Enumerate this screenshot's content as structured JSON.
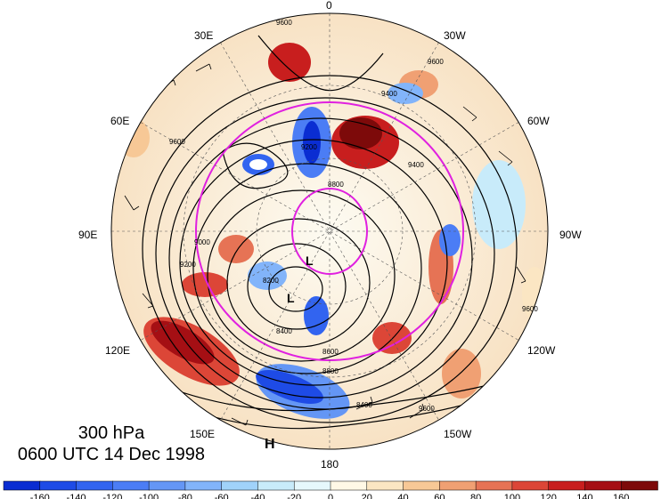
{
  "title_block": {
    "level": "300 hPa",
    "valid_time": "0600 UTC 14 Dec 1998"
  },
  "longitude_labels": {
    "lon_0": "0",
    "lon_30w": "30W",
    "lon_60w": "60W",
    "lon_90w": "90W",
    "lon_120w": "120W",
    "lon_150w": "150W",
    "lon_180": "180",
    "lon_150e": "150E",
    "lon_120e": "120E",
    "lon_90e": "90E",
    "lon_60e": "60E",
    "lon_30e": "30E"
  },
  "projection": "north polar stereographic",
  "contour_labels": {
    "c1": "9600",
    "c2": "9600",
    "c3": "9400",
    "c4": "9200",
    "c5": "8800",
    "c6": "9600",
    "c7": "9000",
    "c8": "9200",
    "c9": "8200",
    "c10": "8400",
    "c11": "8600",
    "c12": "8800",
    "c13": "8400",
    "c14": "9400",
    "c15": "9600",
    "c16": "9600"
  },
  "pressure_centers": {
    "low_1": "L",
    "low_2": "L",
    "high_1": "H"
  },
  "colorbar": {
    "ticks": [
      "-160",
      "-140",
      "-120",
      "-100",
      "-80",
      "-60",
      "-40",
      "-20",
      "0",
      "20",
      "40",
      "60",
      "80",
      "100",
      "120",
      "140",
      "160"
    ],
    "colors": [
      "#0a2dd2",
      "#1e4be6",
      "#3264f0",
      "#4b7df5",
      "#6496f5",
      "#82b4fa",
      "#a0d2fa",
      "#c8ebfa",
      "#e6f8fc",
      "#fff8e6",
      "#fbe6c3",
      "#f7c896",
      "#f0a073",
      "#e67355",
      "#dc4637",
      "#c81e1e",
      "#a50f14",
      "#7d0a0a"
    ]
  },
  "colors": {
    "trough_ring": "#e020e0",
    "contour": "#000000",
    "coast": "#333333"
  }
}
